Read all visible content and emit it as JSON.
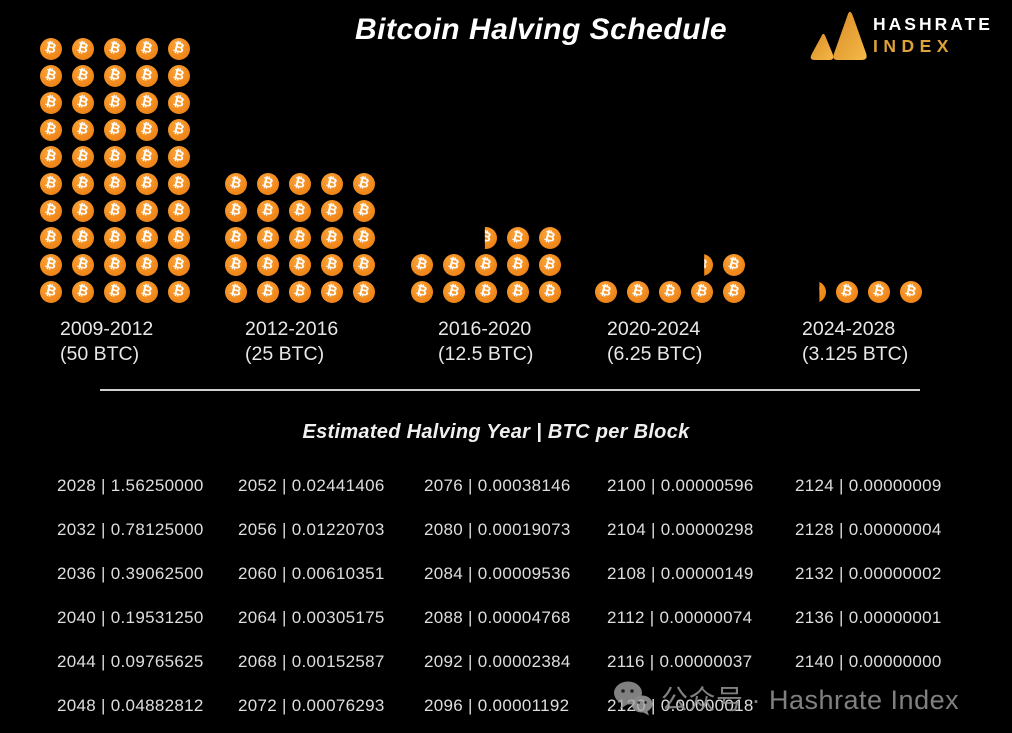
{
  "title": "Bitcoin Halving Schedule",
  "logo": {
    "line1": "HASHRATE",
    "line2": "INDEX",
    "mark": "hashrate-index-triangles",
    "gold": "#E8A33D"
  },
  "colors": {
    "background": "#000000",
    "bitcoin_orange": "#F28B1E",
    "text": "#DEDEDE",
    "logo_gold": "#DFA139"
  },
  "chart_data": {
    "type": "pictogram",
    "title": "Bitcoin Halving Schedule",
    "unit": "1 coin icon = 1 BTC of block reward; partial coins shown as vertical slices",
    "coin_icon": "bitcoin-coin-icon",
    "coin_glyph": "₿",
    "groups": [
      {
        "period": "2009-2012",
        "reward_label": "(50 BTC)",
        "btc_per_block": 50
      },
      {
        "period": "2012-2016",
        "reward_label": "(25 BTC)",
        "btc_per_block": 25
      },
      {
        "period": "2016-2020",
        "reward_label": "(12.5 BTC)",
        "btc_per_block": 12.5
      },
      {
        "period": "2020-2024",
        "reward_label": "(6.25 BTC)",
        "btc_per_block": 6.25
      },
      {
        "period": "2024-2028",
        "reward_label": "(3.125 BTC)",
        "btc_per_block": 3.125
      }
    ]
  },
  "table": {
    "heading": "Estimated Halving Year | BTC per Block",
    "separator": "|",
    "columns": [
      [
        {
          "year": "2028",
          "btc": "1.56250000"
        },
        {
          "year": "2032",
          "btc": "0.78125000"
        },
        {
          "year": "2036",
          "btc": "0.39062500"
        },
        {
          "year": "2040",
          "btc": "0.19531250"
        },
        {
          "year": "2044",
          "btc": "0.09765625"
        },
        {
          "year": "2048",
          "btc": "0.04882812"
        }
      ],
      [
        {
          "year": "2052",
          "btc": "0.02441406"
        },
        {
          "year": "2056",
          "btc": "0.01220703"
        },
        {
          "year": "2060",
          "btc": "0.00610351"
        },
        {
          "year": "2064",
          "btc": "0.00305175"
        },
        {
          "year": "2068",
          "btc": "0.00152587"
        },
        {
          "year": "2072",
          "btc": "0.00076293"
        }
      ],
      [
        {
          "year": "2076",
          "btc": "0.00038146"
        },
        {
          "year": "2080",
          "btc": "0.00019073"
        },
        {
          "year": "2084",
          "btc": "0.00009536"
        },
        {
          "year": "2088",
          "btc": "0.00004768"
        },
        {
          "year": "2092",
          "btc": "0.00002384"
        },
        {
          "year": "2096",
          "btc": "0.00001192"
        }
      ],
      [
        {
          "year": "2100",
          "btc": "0.00000596"
        },
        {
          "year": "2104",
          "btc": "0.00000298"
        },
        {
          "year": "2108",
          "btc": "0.00000149"
        },
        {
          "year": "2112",
          "btc": "0.00000074"
        },
        {
          "year": "2116",
          "btc": "0.00000037"
        },
        {
          "year": "2120",
          "btc": "0.00000018"
        }
      ],
      [
        {
          "year": "2124",
          "btc": "0.00000009"
        },
        {
          "year": "2128",
          "btc": "0.00000004"
        },
        {
          "year": "2132",
          "btc": "0.00000002"
        },
        {
          "year": "2136",
          "btc": "0.00000001"
        },
        {
          "year": "2140",
          "btc": "0.00000000"
        }
      ]
    ]
  },
  "watermark": {
    "icon": "wechat-icon",
    "text": "公众号 · Hashrate Index"
  }
}
